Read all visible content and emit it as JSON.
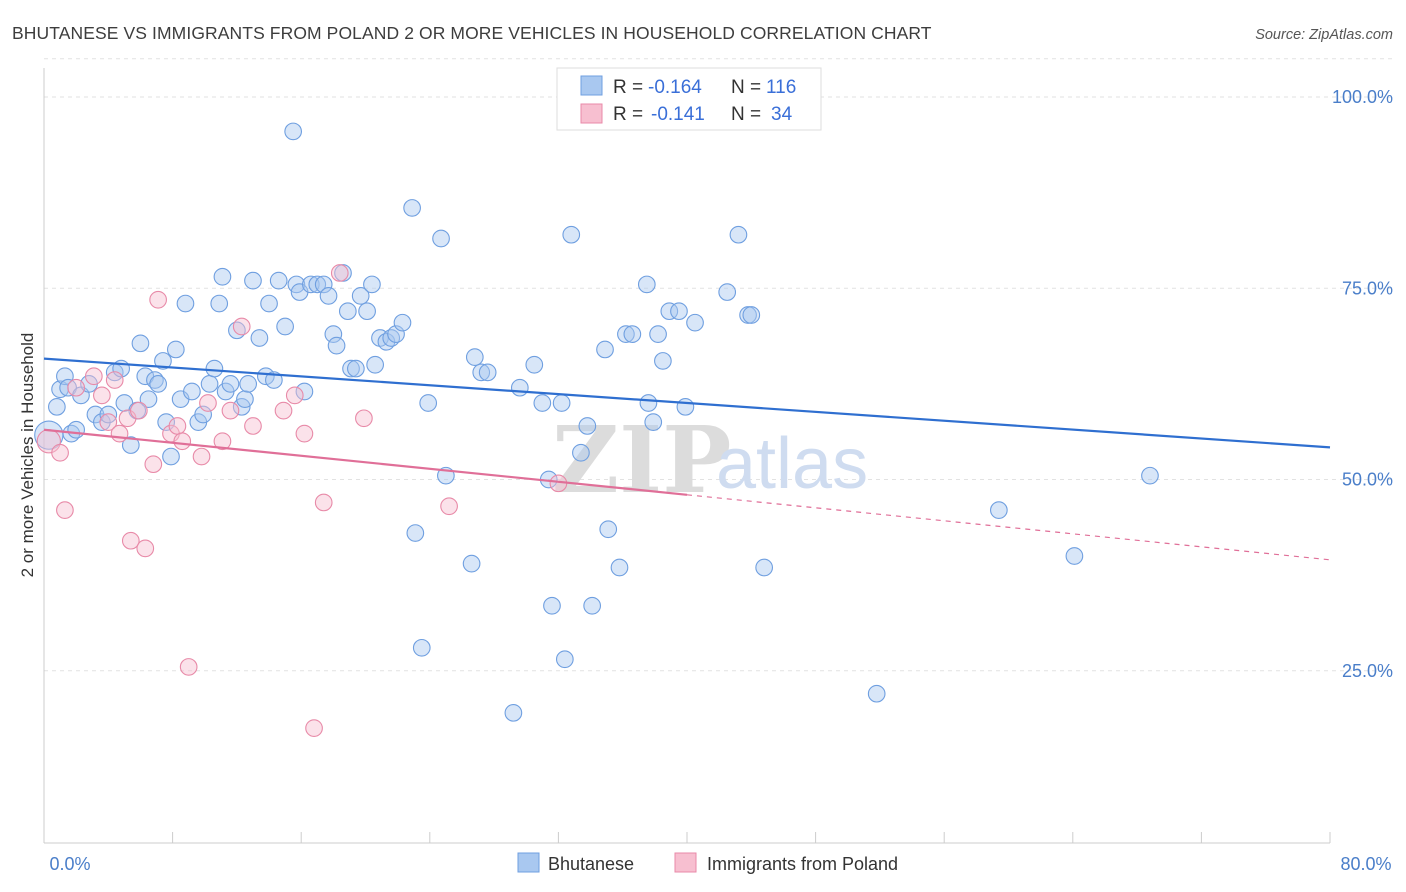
{
  "title": "BHUTANESE VS IMMIGRANTS FROM POLAND 2 OR MORE VEHICLES IN HOUSEHOLD CORRELATION CHART",
  "source": "Source: ZipAtlas.com",
  "watermark": {
    "zip": "ZIP",
    "atlas": "atlas"
  },
  "legend_top": {
    "r_label": "R =",
    "n_label": "N =",
    "rows": [
      {
        "r": "-0.164",
        "n": "116",
        "color": "#a9c8f0",
        "stroke": "#6f9fe0"
      },
      {
        "r": "-0.141",
        "n": "34",
        "color": "#f7bfd0",
        "stroke": "#e88aa8"
      }
    ]
  },
  "chart_data": {
    "type": "scatter",
    "title": "BHUTANESE VS IMMIGRANTS FROM POLAND 2 OR MORE VEHICLES IN HOUSEHOLD CORRELATION CHART",
    "xlabel": "",
    "ylabel": "2 or more Vehicles in Household",
    "xlim": [
      0,
      80
    ],
    "ylim": [
      0,
      105
    ],
    "x_tick_labels": [
      "0.0%",
      "80.0%"
    ],
    "y_ticks": [
      {
        "value": 100,
        "label": "100.0%"
      },
      {
        "value": 75,
        "label": "75.0%"
      },
      {
        "value": 50,
        "label": "50.0%"
      },
      {
        "value": 25,
        "label": "25.0%"
      }
    ],
    "grid": "horizontal dashed",
    "legend_position": "top-center",
    "series": [
      {
        "name": "Bhutanese",
        "color": "#a9c8f0",
        "stroke": "#6f9fe0",
        "trend": {
          "x": [
            0,
            80
          ],
          "y": [
            65.8,
            54.2
          ],
          "color": "#2f6fd0",
          "dashed_from": null
        },
        "points": [
          [
            0.3,
            55.8,
            1.7
          ],
          [
            0.8,
            59.5,
            1
          ],
          [
            1.0,
            61.8,
            1
          ],
          [
            1.3,
            63.5,
            1
          ],
          [
            1.5,
            62.0,
            1
          ],
          [
            1.7,
            56.0,
            1
          ],
          [
            2.0,
            56.5,
            1
          ],
          [
            2.3,
            61.0,
            1
          ],
          [
            2.8,
            62.5,
            1
          ],
          [
            3.2,
            58.5,
            1
          ],
          [
            3.6,
            57.5,
            1
          ],
          [
            4.0,
            58.5,
            1
          ],
          [
            4.4,
            64.0,
            1
          ],
          [
            4.8,
            64.5,
            1
          ],
          [
            5.0,
            60.0,
            1
          ],
          [
            5.4,
            54.5,
            1
          ],
          [
            5.8,
            59.0,
            1
          ],
          [
            6.0,
            67.8,
            1
          ],
          [
            6.3,
            63.5,
            1
          ],
          [
            6.5,
            60.5,
            1
          ],
          [
            6.9,
            63.0,
            1
          ],
          [
            7.1,
            62.5,
            1
          ],
          [
            7.4,
            65.5,
            1
          ],
          [
            7.6,
            57.5,
            1
          ],
          [
            7.9,
            53.0,
            1
          ],
          [
            8.2,
            67.0,
            1
          ],
          [
            8.5,
            60.5,
            1
          ],
          [
            8.8,
            73.0,
            1
          ],
          [
            9.2,
            61.5,
            1
          ],
          [
            9.6,
            57.5,
            1
          ],
          [
            9.9,
            58.5,
            1
          ],
          [
            10.3,
            62.5,
            1
          ],
          [
            10.6,
            64.5,
            1
          ],
          [
            10.9,
            73.0,
            1
          ],
          [
            11.1,
            76.5,
            1
          ],
          [
            11.3,
            61.5,
            1
          ],
          [
            11.6,
            62.5,
            1
          ],
          [
            12.0,
            69.5,
            1
          ],
          [
            12.3,
            59.5,
            1
          ],
          [
            12.5,
            60.5,
            1
          ],
          [
            12.7,
            62.5,
            1
          ],
          [
            13.0,
            76.0,
            1
          ],
          [
            13.4,
            68.5,
            1
          ],
          [
            13.8,
            63.5,
            1
          ],
          [
            14.0,
            73.0,
            1
          ],
          [
            14.3,
            63.0,
            1
          ],
          [
            14.6,
            76.0,
            1
          ],
          [
            15.0,
            70.0,
            1
          ],
          [
            15.5,
            95.5,
            1
          ],
          [
            15.7,
            75.5,
            1
          ],
          [
            15.9,
            74.5,
            1
          ],
          [
            16.2,
            61.5,
            1
          ],
          [
            16.6,
            75.5,
            1
          ],
          [
            17.0,
            75.5,
            1
          ],
          [
            17.4,
            75.5,
            1
          ],
          [
            17.7,
            74.0,
            1
          ],
          [
            18.0,
            69.0,
            1
          ],
          [
            18.2,
            67.5,
            1
          ],
          [
            18.6,
            77.0,
            1
          ],
          [
            18.9,
            72.0,
            1
          ],
          [
            19.1,
            64.5,
            1
          ],
          [
            19.4,
            64.5,
            1
          ],
          [
            19.7,
            74.0,
            1
          ],
          [
            20.1,
            72.0,
            1
          ],
          [
            20.4,
            75.5,
            1
          ],
          [
            20.6,
            65.0,
            1
          ],
          [
            20.9,
            68.5,
            1
          ],
          [
            21.3,
            68.0,
            1
          ],
          [
            21.6,
            68.5,
            1
          ],
          [
            21.9,
            69.0,
            1
          ],
          [
            22.3,
            70.5,
            1
          ],
          [
            22.9,
            85.5,
            1
          ],
          [
            23.1,
            43.0,
            1
          ],
          [
            23.5,
            28.0,
            1
          ],
          [
            23.9,
            60.0,
            1
          ],
          [
            24.7,
            81.5,
            1
          ],
          [
            25.0,
            50.5,
            1
          ],
          [
            26.8,
            66.0,
            1
          ],
          [
            26.6,
            39.0,
            1
          ],
          [
            27.2,
            64.0,
            1
          ],
          [
            27.6,
            64.0,
            1
          ],
          [
            29.2,
            19.5,
            1
          ],
          [
            29.6,
            62.0,
            1
          ],
          [
            30.5,
            65.0,
            1
          ],
          [
            31.0,
            60.0,
            1
          ],
          [
            31.4,
            50.0,
            1
          ],
          [
            31.6,
            33.5,
            1
          ],
          [
            32.2,
            60.0,
            1
          ],
          [
            32.4,
            26.5,
            1
          ],
          [
            32.8,
            82.0,
            1
          ],
          [
            33.4,
            53.5,
            1
          ],
          [
            33.8,
            57.0,
            1
          ],
          [
            34.1,
            33.5,
            1
          ],
          [
            34.9,
            67.0,
            1
          ],
          [
            35.1,
            43.5,
            1
          ],
          [
            35.8,
            38.5,
            1
          ],
          [
            36.2,
            69.0,
            1
          ],
          [
            36.6,
            69.0,
            1
          ],
          [
            37.6,
            60.0,
            1
          ],
          [
            37.9,
            57.5,
            1
          ],
          [
            37.5,
            75.5,
            1
          ],
          [
            38.2,
            69.0,
            1
          ],
          [
            38.5,
            65.5,
            1
          ],
          [
            38.9,
            72.0,
            1
          ],
          [
            39.5,
            72.0,
            1
          ],
          [
            39.9,
            59.5,
            1
          ],
          [
            40.5,
            70.5,
            1
          ],
          [
            42.5,
            74.5,
            1
          ],
          [
            43.2,
            82.0,
            1
          ],
          [
            43.8,
            71.5,
            1
          ],
          [
            44.8,
            38.5,
            1
          ],
          [
            44.0,
            71.5,
            1
          ],
          [
            51.8,
            22.0,
            1
          ],
          [
            59.4,
            46.0,
            1
          ],
          [
            64.1,
            40.0,
            1
          ],
          [
            68.8,
            50.5,
            1
          ]
        ]
      },
      {
        "name": "Immigrants from Poland",
        "color": "#f7bfd0",
        "stroke": "#e88aa8",
        "trend": {
          "x": [
            0,
            80
          ],
          "y": [
            56.5,
            39.5
          ],
          "color": "#e06f98",
          "dashed_from": 40
        },
        "points": [
          [
            0.3,
            55.0,
            1.4
          ],
          [
            1.0,
            53.5,
            1
          ],
          [
            1.3,
            46.0,
            1
          ],
          [
            2.0,
            62.0,
            1
          ],
          [
            3.1,
            63.5,
            1
          ],
          [
            3.6,
            61.0,
            1
          ],
          [
            4.0,
            57.5,
            1
          ],
          [
            4.4,
            63.0,
            1
          ],
          [
            4.7,
            56.0,
            1
          ],
          [
            5.2,
            58.0,
            1
          ],
          [
            5.4,
            42.0,
            1
          ],
          [
            5.9,
            59.0,
            1
          ],
          [
            6.3,
            41.0,
            1
          ],
          [
            6.8,
            52.0,
            1
          ],
          [
            7.1,
            73.5,
            1
          ],
          [
            7.9,
            56.0,
            1
          ],
          [
            8.3,
            57.0,
            1
          ],
          [
            8.6,
            55.0,
            1
          ],
          [
            9.0,
            25.5,
            1
          ],
          [
            9.8,
            53.0,
            1
          ],
          [
            10.2,
            60.0,
            1
          ],
          [
            11.1,
            55.0,
            1
          ],
          [
            11.6,
            59.0,
            1
          ],
          [
            12.3,
            70.0,
            1
          ],
          [
            13.0,
            57.0,
            1
          ],
          [
            14.9,
            59.0,
            1
          ],
          [
            15.6,
            61.0,
            1
          ],
          [
            16.2,
            56.0,
            1
          ],
          [
            16.8,
            17.5,
            1
          ],
          [
            17.4,
            47.0,
            1
          ],
          [
            18.4,
            77.0,
            1
          ],
          [
            19.9,
            58.0,
            1
          ],
          [
            25.2,
            46.5,
            1
          ],
          [
            32.0,
            49.5,
            1
          ]
        ]
      }
    ]
  },
  "bottom_legend": [
    {
      "label": "Bhutanese",
      "color": "#a9c8f0",
      "stroke": "#6f9fe0"
    },
    {
      "label": "Immigrants from Poland",
      "color": "#f7bfd0",
      "stroke": "#e88aa8"
    }
  ]
}
